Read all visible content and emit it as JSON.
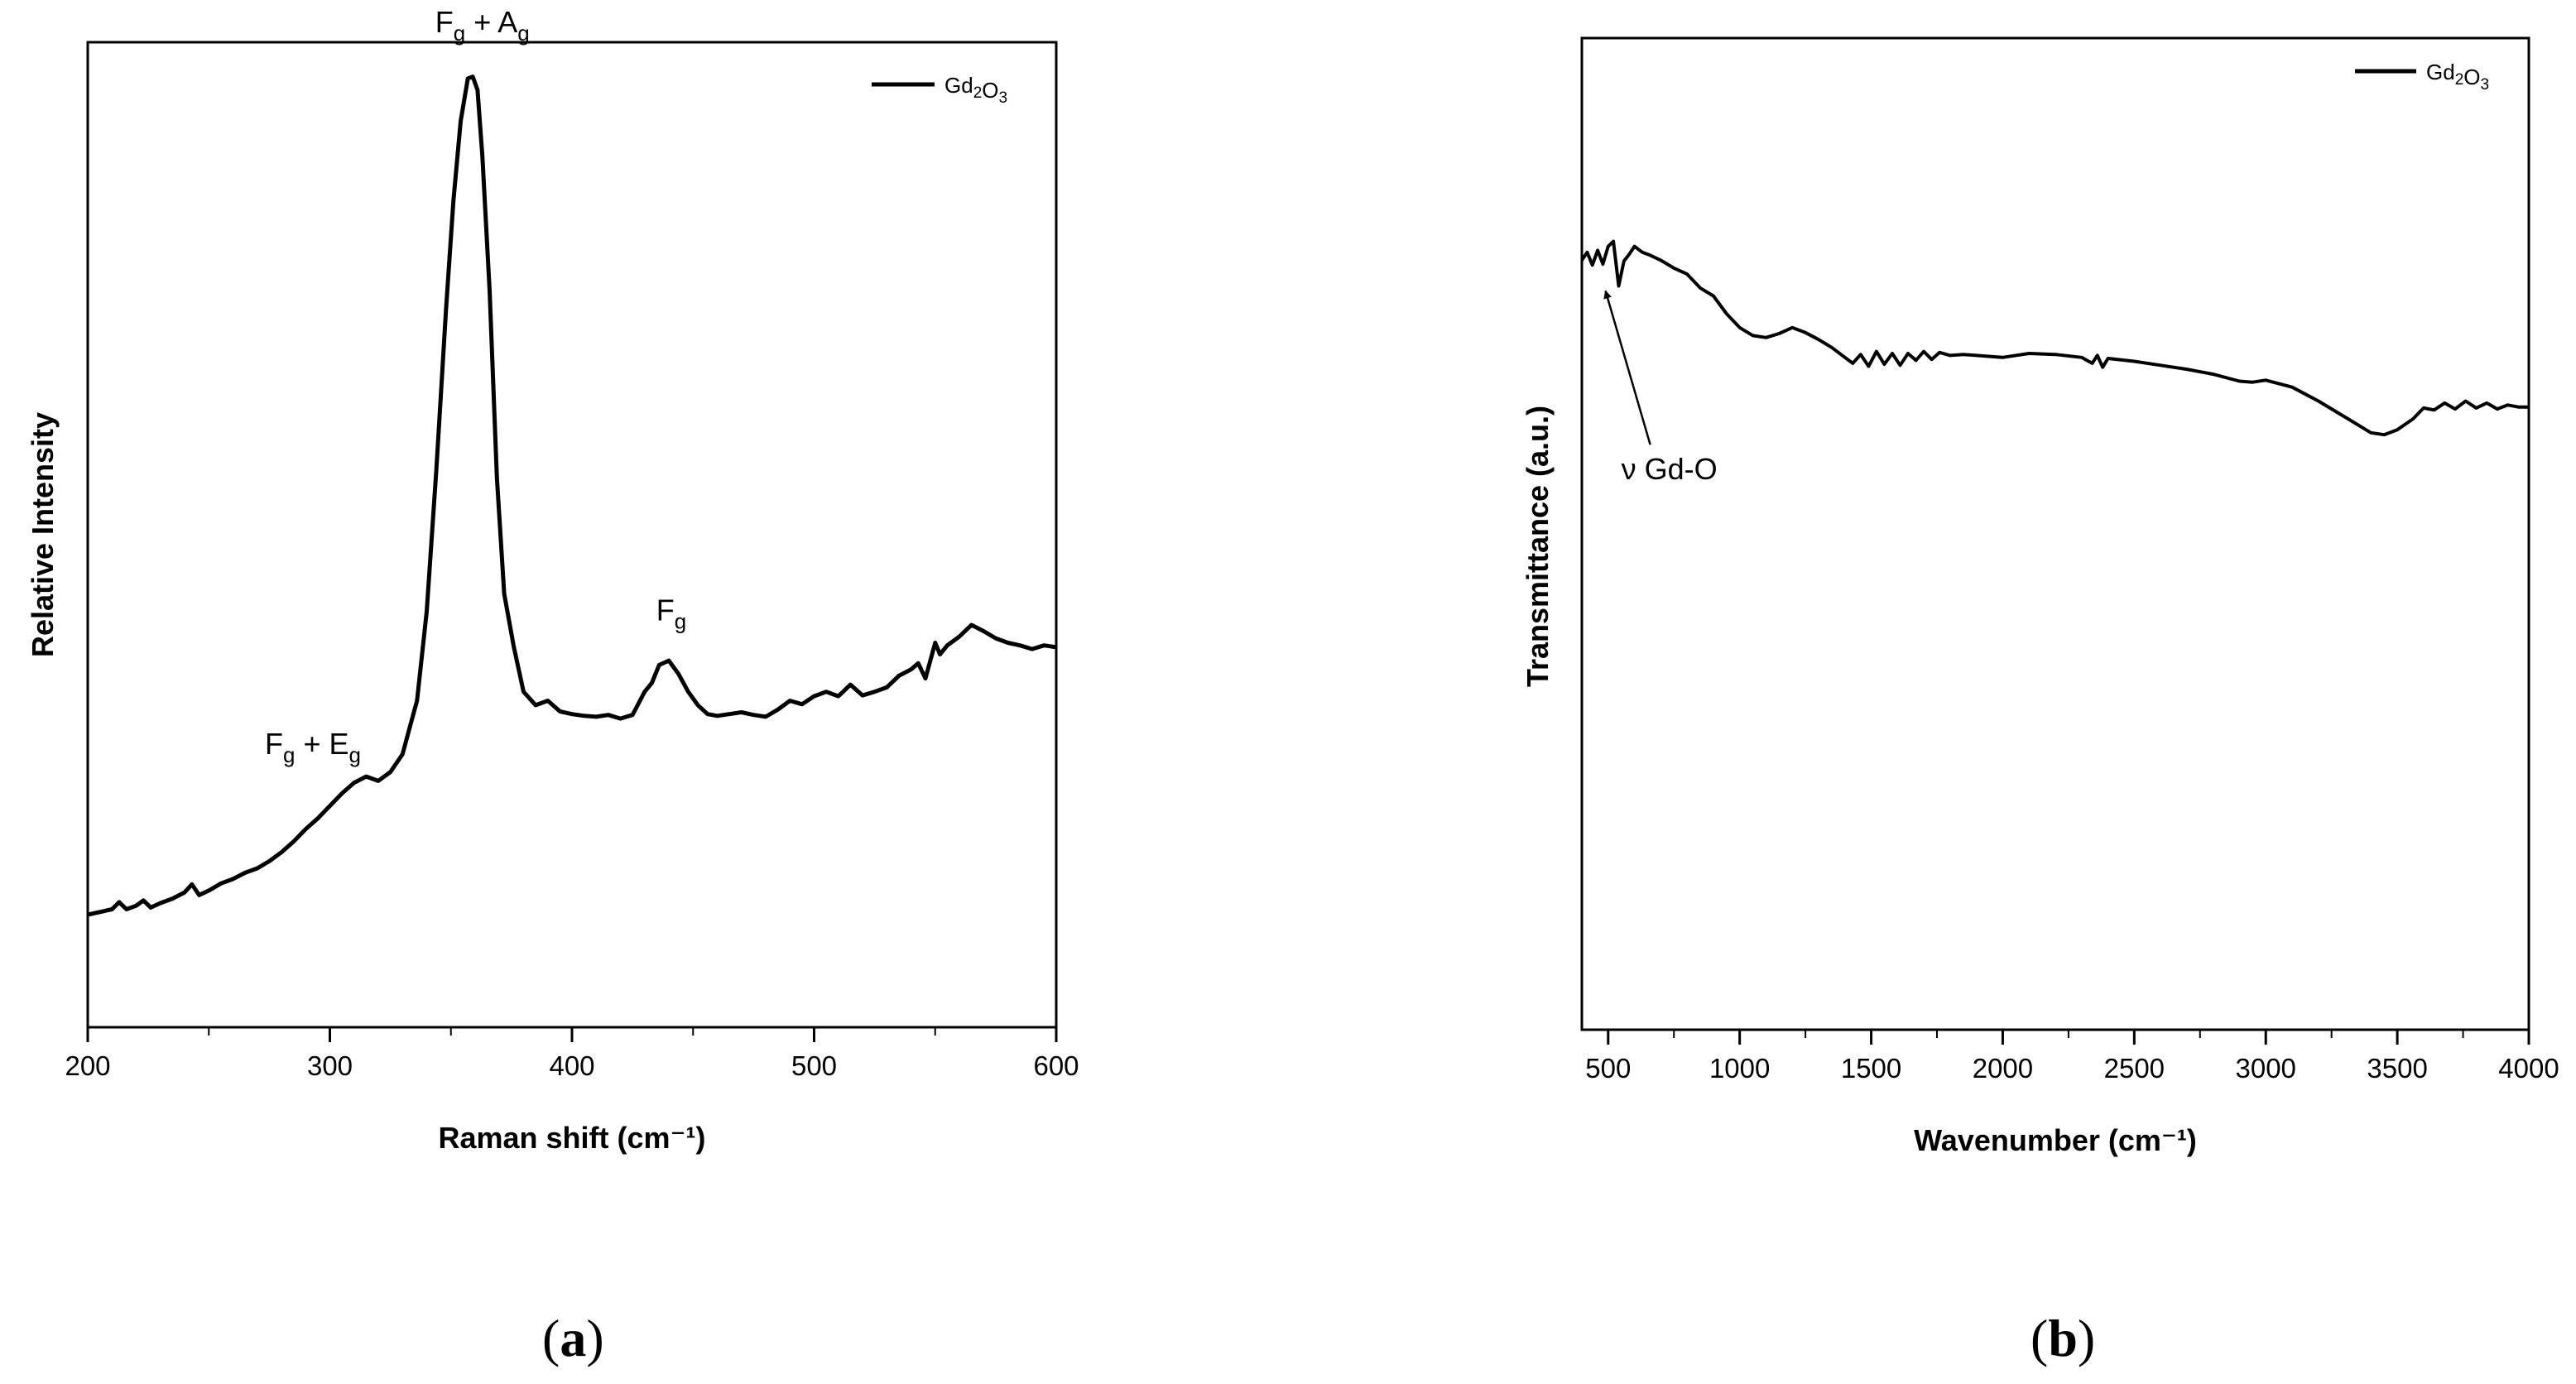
{
  "chart_data": [
    {
      "panel": "(a)",
      "panel_letter": "a",
      "type": "line",
      "title": "",
      "xlabel": "Raman shift (cm⁻¹)",
      "ylabel": "Relative Intensity",
      "xlim": [
        200,
        600
      ],
      "ylim": [
        0,
        1
      ],
      "xticks": [
        200,
        300,
        400,
        500,
        600
      ],
      "xtick_labels": [
        "200",
        "300",
        "400",
        "500",
        "600"
      ],
      "yticks": [],
      "grid": false,
      "legend": {
        "position": "top-right",
        "label": "Gd₂O₃"
      },
      "series": [
        {
          "name": "Gd₂O₃",
          "color": "#000000",
          "x": [
            200,
            205,
            210,
            213,
            216,
            220,
            223,
            226,
            230,
            235,
            240,
            243,
            246,
            250,
            255,
            260,
            265,
            270,
            275,
            280,
            285,
            290,
            295,
            300,
            305,
            310,
            315,
            320,
            325,
            330,
            333,
            336,
            340,
            344,
            348,
            351,
            354,
            357,
            359,
            361,
            363,
            366,
            369,
            372,
            376,
            380,
            385,
            390,
            395,
            400,
            405,
            410,
            415,
            420,
            425,
            430,
            433,
            436,
            440,
            444,
            448,
            452,
            456,
            460,
            465,
            470,
            475,
            480,
            485,
            490,
            495,
            500,
            505,
            510,
            515,
            520,
            525,
            530,
            535,
            540,
            543,
            546,
            550,
            552,
            555,
            560,
            565,
            570,
            575,
            580,
            585,
            590,
            595,
            600
          ],
          "y": [
            0.06,
            0.063,
            0.066,
            0.074,
            0.066,
            0.07,
            0.076,
            0.068,
            0.073,
            0.078,
            0.085,
            0.094,
            0.082,
            0.087,
            0.095,
            0.1,
            0.107,
            0.112,
            0.12,
            0.13,
            0.142,
            0.156,
            0.168,
            0.182,
            0.196,
            0.208,
            0.215,
            0.21,
            0.22,
            0.24,
            0.27,
            0.3,
            0.4,
            0.56,
            0.74,
            0.86,
            0.95,
            0.998,
            1.0,
            0.985,
            0.91,
            0.76,
            0.55,
            0.42,
            0.36,
            0.31,
            0.295,
            0.3,
            0.288,
            0.285,
            0.283,
            0.282,
            0.284,
            0.28,
            0.284,
            0.31,
            0.32,
            0.34,
            0.345,
            0.33,
            0.31,
            0.295,
            0.285,
            0.283,
            0.285,
            0.287,
            0.284,
            0.282,
            0.29,
            0.3,
            0.296,
            0.305,
            0.31,
            0.305,
            0.318,
            0.306,
            0.31,
            0.315,
            0.328,
            0.335,
            0.342,
            0.325,
            0.365,
            0.352,
            0.362,
            0.372,
            0.385,
            0.378,
            0.37,
            0.365,
            0.362,
            0.358,
            0.362,
            0.36
          ]
        }
      ],
      "annotations": [
        {
          "main": "F",
          "sub": "g",
          "main2": " + A",
          "sub2": "g",
          "x": 363,
          "y": 1.05
        },
        {
          "main": "F",
          "sub": "g",
          "main2": " + E",
          "sub2": "g",
          "x": 293,
          "y": 0.24
        },
        {
          "main": "F",
          "sub": "g",
          "main2": "",
          "sub2": "",
          "x": 441,
          "y": 0.39
        }
      ]
    },
    {
      "panel": "(b)",
      "panel_letter": "b",
      "type": "line",
      "title": "",
      "xlabel": "Wavenumber (cm⁻¹)",
      "ylabel": "Transmittance (a.u.)",
      "xlim": [
        400,
        4000
      ],
      "ylim": [
        0,
        1
      ],
      "xticks": [
        500,
        1000,
        1500,
        2000,
        2500,
        3000,
        3500,
        4000
      ],
      "xtick_labels": [
        "500",
        "1000",
        "1500",
        "2000",
        "2500",
        "3000",
        "3500",
        "4000"
      ],
      "yticks": [],
      "grid": false,
      "legend": {
        "position": "top-right",
        "label": "Gd₂O₃"
      },
      "series": [
        {
          "name": "Gd₂O₃",
          "color": "#000000",
          "x": [
            400,
            420,
            440,
            460,
            480,
            500,
            520,
            540,
            560,
            580,
            600,
            630,
            660,
            700,
            750,
            800,
            850,
            900,
            950,
            1000,
            1050,
            1100,
            1150,
            1200,
            1250,
            1300,
            1350,
            1400,
            1430,
            1460,
            1490,
            1520,
            1550,
            1580,
            1610,
            1640,
            1670,
            1700,
            1730,
            1760,
            1800,
            1850,
            1900,
            2000,
            2100,
            2200,
            2300,
            2340,
            2360,
            2380,
            2400,
            2500,
            2600,
            2700,
            2800,
            2900,
            2950,
            3000,
            3100,
            3200,
            3300,
            3400,
            3450,
            3500,
            3560,
            3600,
            3640,
            3680,
            3720,
            3760,
            3800,
            3840,
            3880,
            3920,
            3960,
            4000
          ],
          "y": [
            0.776,
            0.784,
            0.771,
            0.786,
            0.772,
            0.79,
            0.795,
            0.75,
            0.775,
            0.782,
            0.79,
            0.784,
            0.781,
            0.776,
            0.768,
            0.762,
            0.748,
            0.74,
            0.722,
            0.708,
            0.7,
            0.698,
            0.702,
            0.708,
            0.703,
            0.696,
            0.688,
            0.678,
            0.672,
            0.681,
            0.669,
            0.684,
            0.671,
            0.682,
            0.67,
            0.682,
            0.675,
            0.684,
            0.676,
            0.683,
            0.68,
            0.681,
            0.68,
            0.678,
            0.682,
            0.681,
            0.678,
            0.672,
            0.68,
            0.668,
            0.677,
            0.674,
            0.67,
            0.666,
            0.661,
            0.654,
            0.653,
            0.655,
            0.648,
            0.634,
            0.618,
            0.602,
            0.6,
            0.605,
            0.616,
            0.627,
            0.625,
            0.632,
            0.626,
            0.634,
            0.627,
            0.632,
            0.626,
            0.63,
            0.628,
            0.628
          ]
        }
      ],
      "annotations": [
        {
          "text": "ν Gd-O",
          "arrow_from": [
            660,
            0.59
          ],
          "arrow_to": [
            490,
            0.745
          ]
        }
      ]
    }
  ]
}
